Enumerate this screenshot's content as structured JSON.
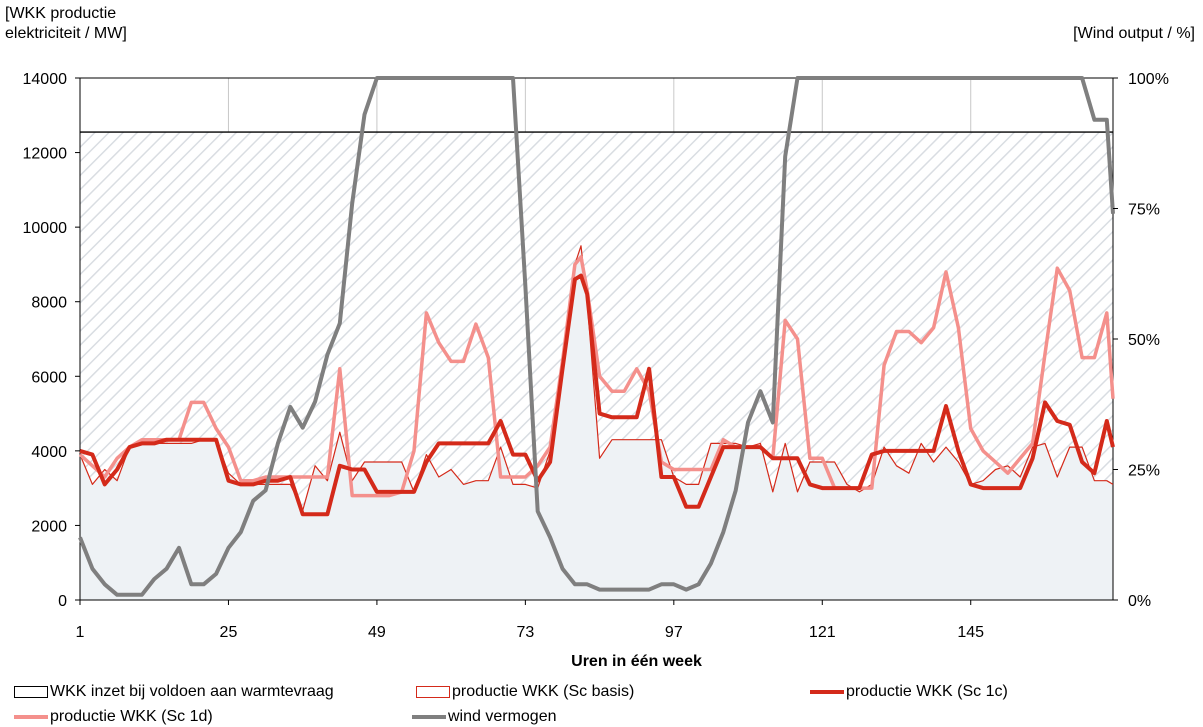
{
  "chart_data": {
    "type": "line",
    "y_left_label_line1": "[WKK productie",
    "y_left_label_line2": "elektriciteit / MW]",
    "y_right_label": "[Wind output / %]",
    "xlabel": "Uren in één week",
    "x_ticks": [
      "1",
      "25",
      "49",
      "73",
      "97",
      "121",
      "145"
    ],
    "y_left_ticks": [
      "0",
      "2000",
      "4000",
      "6000",
      "8000",
      "10000",
      "12000",
      "14000"
    ],
    "y_right_ticks": [
      "0%",
      "25%",
      "50%",
      "75%",
      "100%"
    ],
    "ylim_left": [
      0,
      14000
    ],
    "ylim_right": [
      0,
      100
    ],
    "xlim": [
      1,
      168
    ],
    "grid": "vertical",
    "legend_position": "bottom",
    "colors": {
      "heat_demand": "#000000",
      "sc_basis": "#d42a1a",
      "sc_1c": "#d42a1a",
      "sc_1d": "#f4908c",
      "wind": "#7f7f7f",
      "hatch": "#d9dde2",
      "base_fill": "#eef2f5"
    },
    "series": [
      {
        "name": "WKK inzet bij voldoen aan warmtevraag",
        "kind": "area",
        "x": [
          1,
          168
        ],
        "values": [
          12550,
          12550
        ]
      },
      {
        "name": "productie WKK (Sc basis)",
        "kind": "thin-line",
        "x": [
          1,
          3,
          5,
          7,
          9,
          11,
          13,
          15,
          17,
          19,
          21,
          23,
          25,
          27,
          29,
          31,
          33,
          35,
          37,
          39,
          41,
          43,
          45,
          47,
          49,
          51,
          53,
          55,
          57,
          59,
          61,
          63,
          65,
          67,
          69,
          71,
          73,
          75,
          77,
          79,
          81,
          82,
          83,
          85,
          87,
          89,
          91,
          93,
          95,
          97,
          99,
          101,
          103,
          105,
          107,
          109,
          111,
          113,
          115,
          117,
          119,
          121,
          123,
          125,
          127,
          129,
          131,
          133,
          135,
          137,
          139,
          141,
          143,
          145,
          147,
          149,
          151,
          153,
          155,
          157,
          159,
          161,
          163,
          165,
          167,
          168
        ],
        "values": [
          3900,
          3100,
          3500,
          3200,
          4100,
          4200,
          4200,
          4200,
          4200,
          4200,
          4300,
          4300,
          3400,
          3100,
          3100,
          3100,
          3100,
          3100,
          2400,
          3600,
          3200,
          4500,
          3200,
          3700,
          3700,
          3700,
          3700,
          2900,
          3900,
          3300,
          3500,
          3100,
          3200,
          3200,
          4100,
          3100,
          3100,
          3000,
          4000,
          6200,
          9000,
          9500,
          8000,
          3800,
          4300,
          4300,
          4300,
          4300,
          4300,
          3300,
          3100,
          3100,
          4200,
          4200,
          4200,
          4100,
          4200,
          2900,
          4200,
          2900,
          3700,
          3700,
          3700,
          3100,
          2900,
          3100,
          4100,
          3600,
          3400,
          4200,
          3700,
          4100,
          3700,
          3100,
          3200,
          3500,
          3600,
          3300,
          4100,
          4200,
          3300,
          4100,
          4100,
          3200,
          3200,
          3100
        ]
      },
      {
        "name": "productie WKK (Sc 1c)",
        "kind": "thick-line",
        "x": [
          1,
          3,
          5,
          7,
          9,
          11,
          13,
          15,
          17,
          19,
          21,
          23,
          25,
          27,
          29,
          31,
          33,
          35,
          37,
          39,
          41,
          43,
          45,
          47,
          49,
          51,
          53,
          55,
          57,
          59,
          61,
          63,
          65,
          67,
          69,
          71,
          73,
          75,
          77,
          79,
          81,
          82,
          83,
          85,
          87,
          89,
          91,
          93,
          95,
          97,
          99,
          101,
          103,
          105,
          107,
          109,
          111,
          113,
          115,
          117,
          119,
          121,
          123,
          125,
          127,
          129,
          131,
          133,
          135,
          137,
          139,
          141,
          143,
          145,
          147,
          149,
          151,
          153,
          155,
          157,
          159,
          161,
          163,
          165,
          167,
          168
        ],
        "values": [
          4000,
          3900,
          3100,
          3500,
          4100,
          4200,
          4200,
          4300,
          4300,
          4300,
          4300,
          4300,
          3200,
          3100,
          3100,
          3200,
          3200,
          3300,
          2300,
          2300,
          2300,
          3600,
          3500,
          3500,
          2900,
          2900,
          2900,
          2900,
          3700,
          4200,
          4200,
          4200,
          4200,
          4200,
          4800,
          3900,
          3900,
          3200,
          3700,
          6200,
          8600,
          8700,
          8200,
          5000,
          4900,
          4900,
          4900,
          6200,
          3300,
          3300,
          2500,
          2500,
          3300,
          4100,
          4100,
          4100,
          4100,
          3800,
          3800,
          3800,
          3100,
          3000,
          3000,
          3000,
          3000,
          3900,
          4000,
          4000,
          4000,
          4000,
          4000,
          5200,
          4000,
          3100,
          3000,
          3000,
          3000,
          3000,
          3800,
          5300,
          4800,
          4700,
          3700,
          3400,
          4800,
          4100
        ]
      },
      {
        "name": "productie WKK (Sc 1d)",
        "kind": "medium-line",
        "x": [
          1,
          3,
          5,
          7,
          9,
          11,
          13,
          15,
          17,
          19,
          21,
          23,
          25,
          27,
          29,
          31,
          33,
          35,
          37,
          39,
          41,
          43,
          45,
          47,
          49,
          51,
          53,
          55,
          57,
          59,
          61,
          63,
          65,
          67,
          69,
          71,
          73,
          75,
          77,
          79,
          81,
          82,
          83,
          85,
          87,
          89,
          91,
          93,
          95,
          97,
          99,
          101,
          103,
          105,
          107,
          109,
          111,
          113,
          115,
          117,
          119,
          121,
          123,
          125,
          127,
          129,
          131,
          133,
          135,
          137,
          139,
          141,
          143,
          145,
          147,
          149,
          151,
          153,
          155,
          157,
          159,
          161,
          163,
          165,
          167,
          168
        ],
        "values": [
          3900,
          3600,
          3300,
          3800,
          4100,
          4300,
          4300,
          4300,
          4300,
          5300,
          5300,
          4600,
          4100,
          3200,
          3200,
          3300,
          3300,
          3300,
          3300,
          3300,
          3300,
          6200,
          2800,
          2800,
          2800,
          2800,
          2900,
          4000,
          7700,
          6900,
          6400,
          6400,
          7400,
          6500,
          3300,
          3300,
          3300,
          3600,
          4100,
          6400,
          9000,
          9200,
          8300,
          6000,
          5600,
          5600,
          6200,
          5600,
          3700,
          3500,
          3500,
          3500,
          3500,
          4300,
          4100,
          4100,
          4100,
          3800,
          7500,
          7000,
          3800,
          3800,
          3000,
          3000,
          3000,
          3000,
          6300,
          7200,
          7200,
          6900,
          7300,
          8800,
          7300,
          4600,
          4000,
          3700,
          3400,
          3800,
          4200,
          6600,
          8900,
          8300,
          6500,
          6500,
          7700,
          5400
        ]
      },
      {
        "name": "wind vermogen",
        "kind": "wind-line",
        "axis": "right",
        "x": [
          1,
          3,
          5,
          7,
          9,
          11,
          13,
          15,
          17,
          19,
          21,
          23,
          25,
          27,
          29,
          31,
          33,
          35,
          37,
          39,
          41,
          43,
          45,
          47,
          49,
          51,
          53,
          55,
          57,
          59,
          61,
          63,
          65,
          67,
          69,
          71,
          73,
          75,
          77,
          79,
          81,
          83,
          85,
          87,
          89,
          91,
          93,
          95,
          97,
          99,
          101,
          103,
          105,
          107,
          109,
          111,
          113,
          115,
          117,
          119,
          121,
          123,
          125,
          127,
          129,
          131,
          133,
          135,
          137,
          139,
          141,
          143,
          145,
          147,
          149,
          151,
          153,
          155,
          157,
          159,
          161,
          163,
          165,
          167,
          168
        ],
        "values": [
          12,
          6,
          3,
          1,
          1,
          1,
          4,
          6,
          10,
          3,
          3,
          5,
          10,
          13,
          19,
          21,
          30,
          37,
          33,
          38,
          47,
          53,
          76,
          93,
          100,
          100,
          100,
          100,
          100,
          100,
          100,
          100,
          100,
          100,
          100,
          100,
          60,
          17,
          12,
          6,
          3,
          3,
          2,
          2,
          2,
          2,
          2,
          3,
          3,
          2,
          3,
          7,
          13,
          21,
          34,
          40,
          34,
          85,
          100,
          100,
          100,
          100,
          100,
          100,
          100,
          100,
          100,
          100,
          100,
          100,
          100,
          100,
          100,
          100,
          100,
          100,
          100,
          100,
          100,
          100,
          100,
          100,
          92,
          92,
          74
        ]
      }
    ]
  },
  "legend": {
    "item1": "WKK inzet bij voldoen aan warmtevraag",
    "item2": "productie WKK (Sc basis)",
    "item3": "productie WKK (Sc 1c)",
    "item4": "productie WKK (Sc 1d)",
    "item5": "wind vermogen"
  }
}
